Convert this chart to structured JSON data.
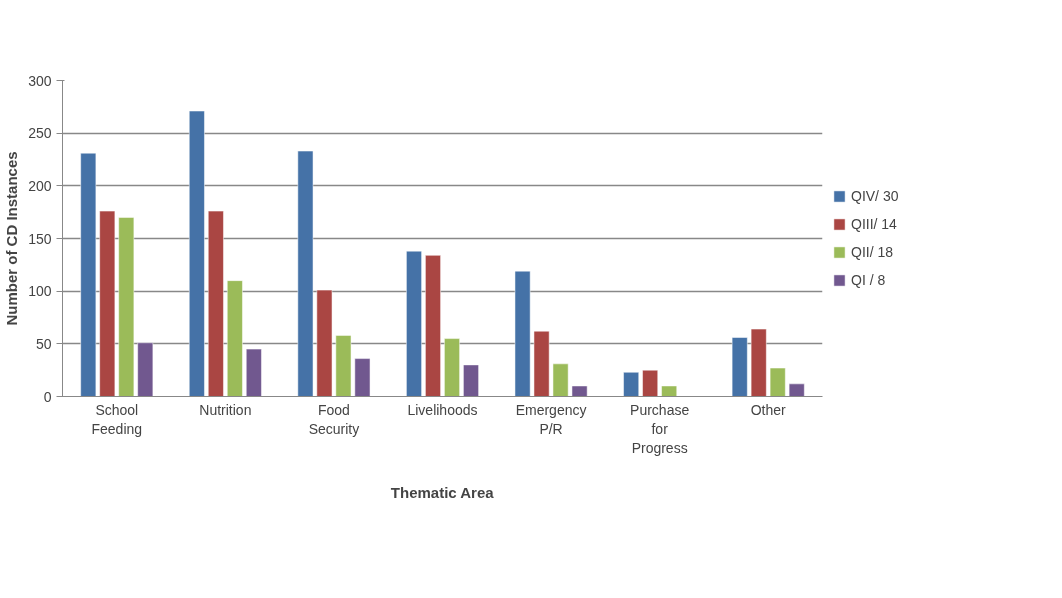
{
  "chart_data": {
    "type": "bar",
    "xlabel": "Thematic Area",
    "ylabel": "Number of CD Instances",
    "categories": [
      "School Feeding",
      "Nutrition",
      "Food Security",
      "Livelihoods",
      "Emergency P/R",
      "Purchase for Progress",
      "Other"
    ],
    "series": [
      {
        "name": "QIV/ 30",
        "color": "#4572a7",
        "values": [
          231,
          271,
          233,
          138,
          119,
          23,
          56
        ]
      },
      {
        "name": "QIII/ 14",
        "color": "#aa4643",
        "values": [
          176,
          176,
          101,
          134,
          62,
          25,
          64
        ]
      },
      {
        "name": "QII/ 18",
        "color": "#9bbb59",
        "values": [
          170,
          110,
          58,
          55,
          31,
          10,
          27
        ]
      },
      {
        "name": "QI / 8",
        "color": "#71588f",
        "values": [
          51,
          45,
          36,
          30,
          10,
          null,
          12
        ]
      }
    ],
    "ylim": [
      0,
      300
    ],
    "yticks": [
      0,
      50,
      100,
      150,
      200,
      250,
      300
    ],
    "grid": "y",
    "legend": "right"
  }
}
